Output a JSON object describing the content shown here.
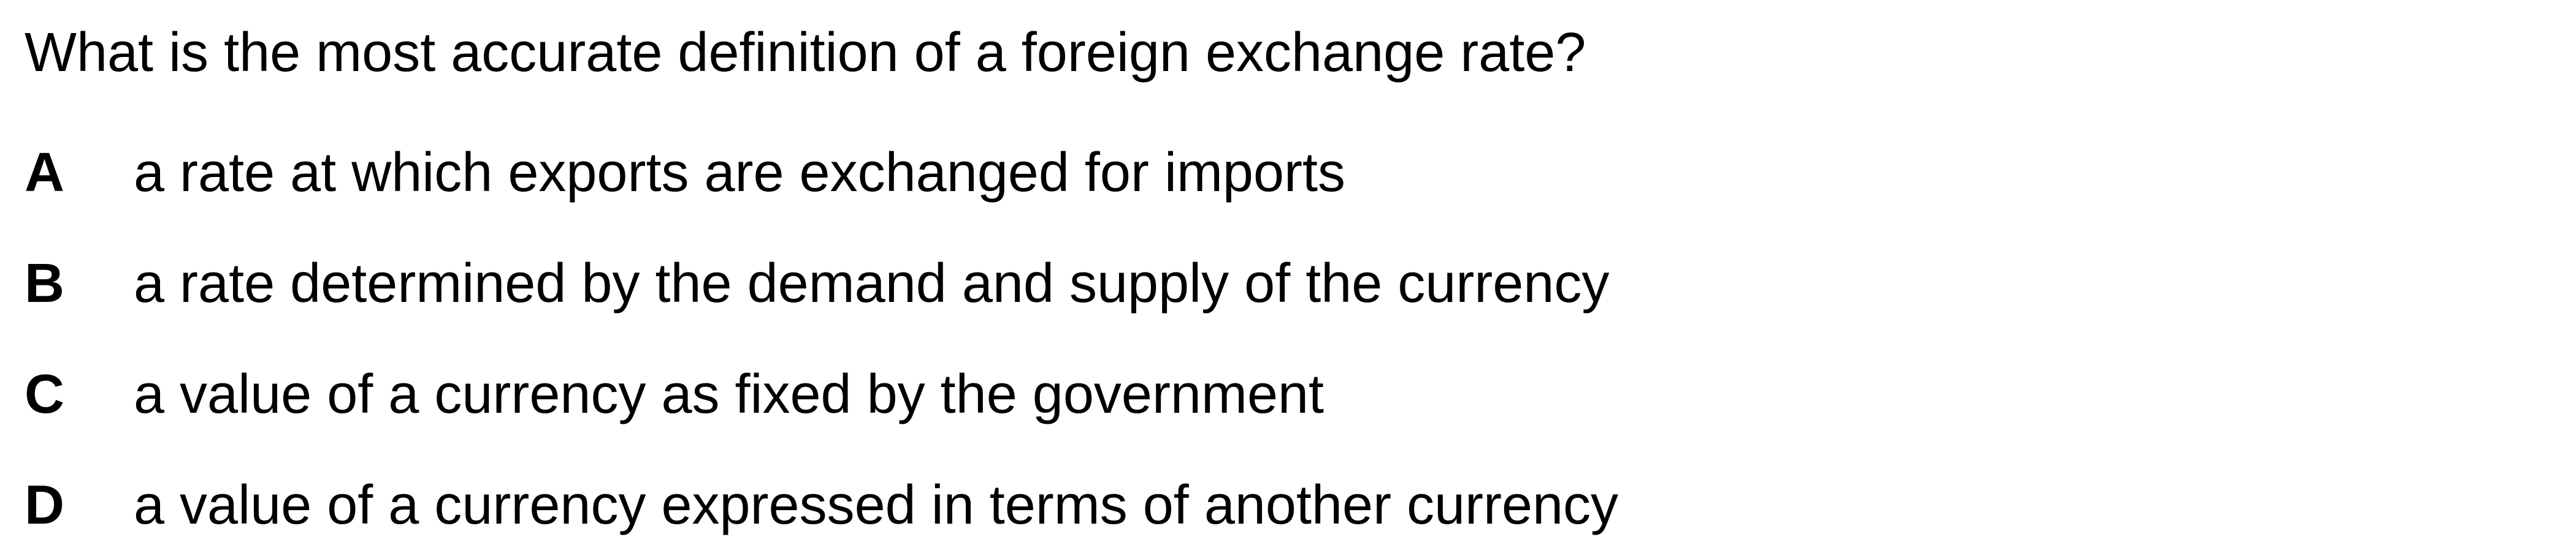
{
  "question": {
    "text": "What is the most accurate definition of a foreign exchange rate?"
  },
  "options": [
    {
      "letter": "A",
      "text": "a rate at which exports are exchanged for imports"
    },
    {
      "letter": "B",
      "text": "a rate determined by the demand and supply of the currency"
    },
    {
      "letter": "C",
      "text": "a value of a currency as fixed by the government"
    },
    {
      "letter": "D",
      "text": "a value of a currency expressed in terms of another currency"
    }
  ]
}
